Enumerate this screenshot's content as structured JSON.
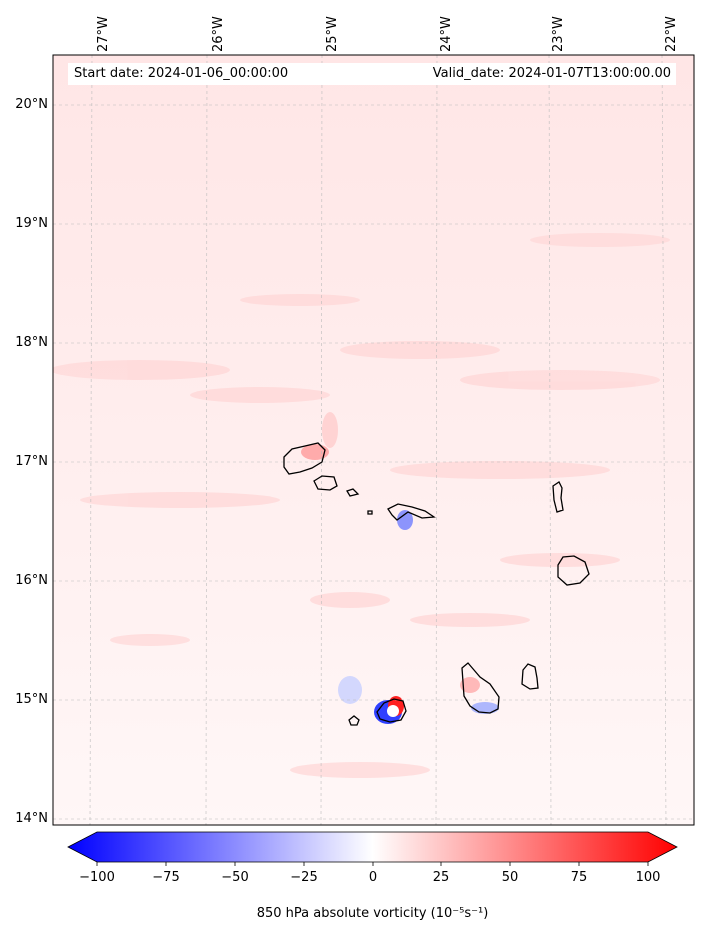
{
  "header": {
    "start_date": "Start date: 2024-01-06_00:00:00",
    "valid_date": "Valid_date: 2024-01-07T13:00:00.00"
  },
  "axes": {
    "lon_labels": [
      "27°W",
      "26°W",
      "25°W",
      "24°W",
      "23°W",
      "22°W"
    ],
    "lat_labels": [
      "20°N",
      "19°N",
      "18°N",
      "17°N",
      "16°N",
      "15°N",
      "14°N"
    ]
  },
  "colorbar": {
    "ticks": [
      "−100",
      "−75",
      "−50",
      "−25",
      "0",
      "25",
      "50",
      "75",
      "100"
    ],
    "label": "850 hPa absolute vorticity (10⁻⁵s⁻¹)",
    "vmin": -100,
    "vmax": 100,
    "colors": {
      "negative": "#0000ff",
      "zero": "#ffffff",
      "positive": "#ff0000"
    }
  },
  "chart_data": {
    "type": "heatmap",
    "variable": "850 hPa absolute vorticity",
    "units": "10^-5 s^-1",
    "lon_range": [
      -27.3,
      -21.9
    ],
    "lat_range": [
      13.95,
      20.45
    ],
    "colormap": "bwr",
    "features": [
      {
        "lon": -24.35,
        "lat": 14.93,
        "value": 100
      },
      {
        "lon": -24.4,
        "lat": 14.85,
        "value": -80
      },
      {
        "lon": -24.95,
        "lat": 17.05,
        "value": 60
      },
      {
        "lon": -23.55,
        "lat": 14.85,
        "value": -40
      }
    ],
    "grid": true
  }
}
